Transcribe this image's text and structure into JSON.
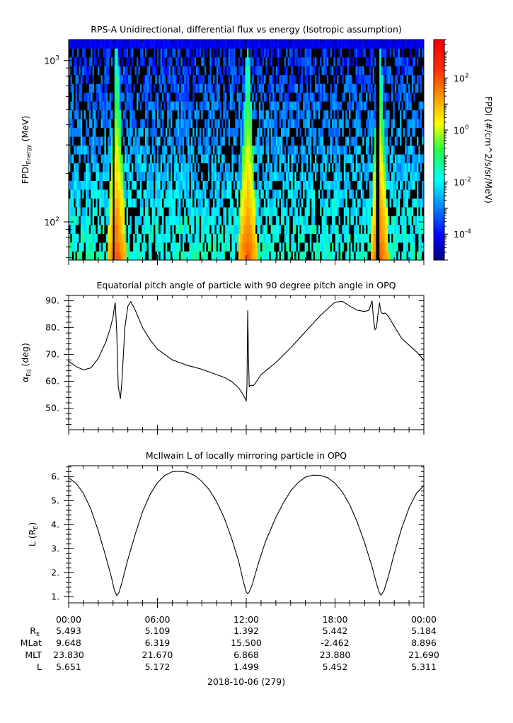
{
  "chart_data": [
    {
      "type": "heatmap",
      "title": "RPS-A Unidirectional, differential flux vs energy (Isotropic assumption)",
      "ylabel_main": "FPDI",
      "ylabel_sub": "Energy",
      "ylabel_unit": " (MeV)",
      "y_scale": "log",
      "ylim": [
        58,
        1350
      ],
      "y_ticks": [
        {
          "value": 100,
          "base": "10",
          "exp": "2"
        },
        {
          "value": 1000,
          "base": "10",
          "exp": "3"
        }
      ],
      "z_scale": "log",
      "zlim": [
        1e-05,
        3000
      ],
      "colorbar_label": "FPDI (#/cm^2/s/sr/MeV)",
      "colorbar_ticks": [
        {
          "value": 0.0001,
          "base": "10",
          "exp": "-4"
        },
        {
          "value": 0.01,
          "base": "10",
          "exp": "-2"
        },
        {
          "value": 1,
          "base": "10",
          "exp": "0"
        },
        {
          "value": 100,
          "base": "10",
          "exp": "2"
        }
      ],
      "x_range_hours": [
        0,
        24
      ],
      "belt_crossings_hours": [
        3.25,
        12.1,
        21.0
      ]
    },
    {
      "type": "line",
      "title": "Equatorial pitch angle of particle with 90 degree pitch angle in OPQ",
      "ylabel_main": "α",
      "ylabel_sub": "Eq",
      "ylabel_unit": " (deg)",
      "ylim": [
        42,
        92
      ],
      "y_ticks": [
        "50.",
        "60.",
        "70.",
        "80.",
        "90."
      ],
      "x_hours": [
        0,
        0.5,
        1,
        1.5,
        2,
        2.5,
        2.8,
        3.0,
        3.1,
        3.15,
        3.25,
        3.35,
        3.5,
        3.6,
        3.7,
        3.8,
        4.0,
        4.2,
        4.5,
        5,
        5.5,
        6,
        7,
        8,
        9,
        10,
        10.5,
        11,
        11.5,
        11.8,
        12.0,
        12.05,
        12.1,
        12.15,
        12.2,
        12.3,
        12.5,
        12.7,
        13,
        14,
        15,
        16,
        17,
        18,
        18.5,
        19,
        19.5,
        20.0,
        20.3,
        20.5,
        20.6,
        20.7,
        20.8,
        20.9,
        21.0,
        21.1,
        21.2,
        21.4,
        21.6,
        22,
        22.5,
        23,
        23.5,
        24
      ],
      "y_deg": [
        67.5,
        65.5,
        64.3,
        65.0,
        68.5,
        74.5,
        79.5,
        84.0,
        88.0,
        89.3,
        78.0,
        58.0,
        53.5,
        60.0,
        70.0,
        80.0,
        88.0,
        89.7,
        86.5,
        80.0,
        75.5,
        72.0,
        68.0,
        66.0,
        64.5,
        62.5,
        61.5,
        60.0,
        57.5,
        55.0,
        52.8,
        58.0,
        86.5,
        70.0,
        58.0,
        58.5,
        58.5,
        60.0,
        62.5,
        67.0,
        72.5,
        78.5,
        84.5,
        89.5,
        89.8,
        88.0,
        86.5,
        86.0,
        86.5,
        90.0,
        83.0,
        79.3,
        80.0,
        85.0,
        89.2,
        86.0,
        85.3,
        85.4,
        84.2,
        80.5,
        76.0,
        73.5,
        71.0,
        68.0
      ]
    },
    {
      "type": "line",
      "title": "McIlwain L of locally mirroring particle in OPQ",
      "ylabel_main": "L (R",
      "ylabel_sub": "E",
      "ylabel_unit": ")",
      "ylim": [
        0.75,
        6.45
      ],
      "y_ticks": [
        "1.",
        "2.",
        "3.",
        "4.",
        "5.",
        "6."
      ],
      "x_hours": [
        0,
        0.5,
        1,
        1.5,
        2,
        2.5,
        2.9,
        3.1,
        3.25,
        3.4,
        3.6,
        4,
        4.5,
        5,
        5.5,
        6,
        6.5,
        7,
        7.5,
        8,
        8.5,
        9,
        9.5,
        10,
        10.5,
        11,
        11.5,
        11.8,
        12.0,
        12.1,
        12.2,
        12.4,
        12.8,
        13.3,
        14,
        14.5,
        15,
        15.5,
        16,
        16.5,
        17,
        17.5,
        18,
        18.5,
        19,
        19.5,
        20,
        20.5,
        20.8,
        21.0,
        21.1,
        21.3,
        21.6,
        22,
        22.5,
        23,
        23.5,
        24
      ],
      "y_RE": [
        5.95,
        5.72,
        5.3,
        4.65,
        3.75,
        2.7,
        1.78,
        1.25,
        1.05,
        1.18,
        1.6,
        2.55,
        3.6,
        4.55,
        5.25,
        5.75,
        6.05,
        6.2,
        6.22,
        6.18,
        6.05,
        5.8,
        5.45,
        4.95,
        4.3,
        3.45,
        2.45,
        1.65,
        1.2,
        1.13,
        1.2,
        1.5,
        2.35,
        3.3,
        4.3,
        4.9,
        5.4,
        5.75,
        5.98,
        6.06,
        6.05,
        5.95,
        5.72,
        5.35,
        4.82,
        4.1,
        3.25,
        2.25,
        1.55,
        1.15,
        1.07,
        1.25,
        1.85,
        2.8,
        3.85,
        4.7,
        5.3,
        5.63
      ]
    }
  ],
  "x_axis": {
    "tick_labels": [
      "00:00",
      "06:00",
      "12:00",
      "18:00",
      "00:00"
    ],
    "date_label": "2018-10-06 (279)",
    "ephemeris": [
      {
        "label": "R",
        "label_sub": "E",
        "values": [
          "5.493",
          "5.109",
          "1.392",
          "5.442",
          "5.184"
        ]
      },
      {
        "label": "MLat",
        "label_sub": "",
        "values": [
          "9.648",
          "6.319",
          "15.500",
          "-2.462",
          "8.896"
        ]
      },
      {
        "label": "MLT",
        "label_sub": "",
        "values": [
          "23.830",
          "21.670",
          "6.868",
          "23.880",
          "21.690"
        ]
      },
      {
        "label": "L",
        "label_sub": "",
        "values": [
          "5.651",
          "5.172",
          "1.499",
          "5.452",
          "5.311"
        ]
      }
    ]
  },
  "colors": {
    "background": "#ffffff",
    "axes": "#000000",
    "line": "#000000",
    "gap": "#000000"
  }
}
